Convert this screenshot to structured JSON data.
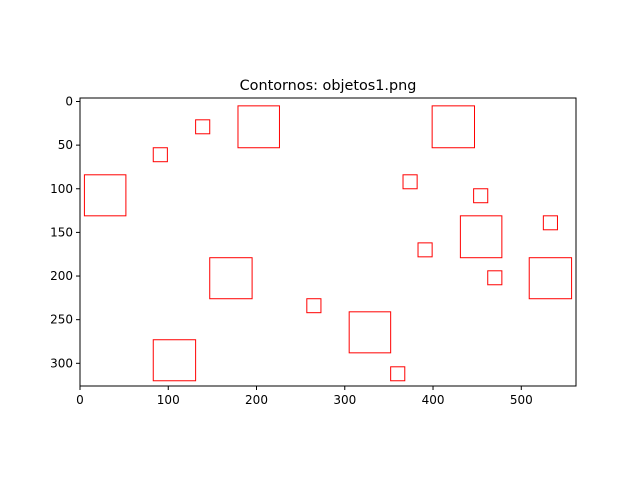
{
  "chart_data": {
    "type": "scatter",
    "title": "Contornos: objetos1.png",
    "xlabel": "",
    "ylabel": "",
    "xlim": [
      0,
      562
    ],
    "ylim": [
      326,
      -4
    ],
    "y_inverted": true,
    "grid": false,
    "x_ticks": [
      0,
      100,
      200,
      300,
      400,
      500
    ],
    "y_ticks": [
      0,
      50,
      100,
      150,
      200,
      250,
      300
    ],
    "edge_color": "#ff0000",
    "rectangles": [
      {
        "x": 179,
        "y": 5,
        "w": 47,
        "h": 48
      },
      {
        "x": 399,
        "y": 5,
        "w": 48,
        "h": 48
      },
      {
        "x": 131,
        "y": 21,
        "w": 16,
        "h": 16
      },
      {
        "x": 83,
        "y": 53,
        "w": 16,
        "h": 16
      },
      {
        "x": 5,
        "y": 84,
        "w": 47,
        "h": 47
      },
      {
        "x": 366,
        "y": 84,
        "w": 16,
        "h": 16
      },
      {
        "x": 446,
        "y": 100,
        "w": 16,
        "h": 16
      },
      {
        "x": 525,
        "y": 131,
        "w": 16,
        "h": 16
      },
      {
        "x": 431,
        "y": 131,
        "w": 47,
        "h": 48
      },
      {
        "x": 383,
        "y": 162,
        "w": 16,
        "h": 16
      },
      {
        "x": 147,
        "y": 179,
        "w": 48,
        "h": 47
      },
      {
        "x": 509,
        "y": 179,
        "w": 48,
        "h": 47
      },
      {
        "x": 462,
        "y": 194,
        "w": 16,
        "h": 16
      },
      {
        "x": 257,
        "y": 226,
        "w": 16,
        "h": 16
      },
      {
        "x": 305,
        "y": 241,
        "w": 47,
        "h": 47
      },
      {
        "x": 83,
        "y": 273,
        "w": 48,
        "h": 47
      },
      {
        "x": 352,
        "y": 304,
        "w": 16,
        "h": 16
      }
    ]
  }
}
